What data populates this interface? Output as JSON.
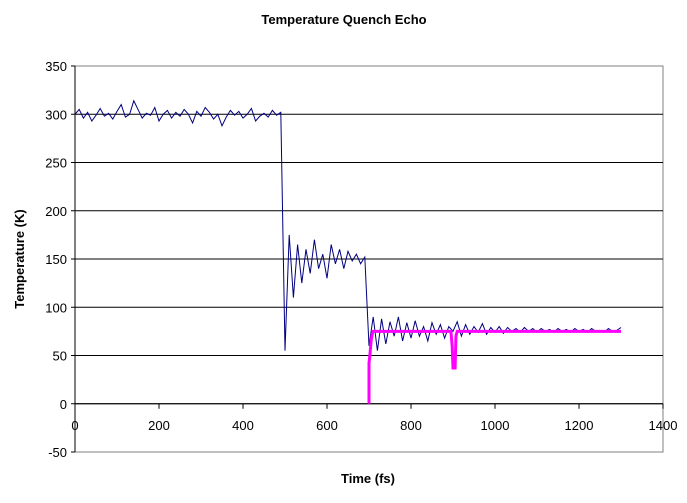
{
  "chart_data": {
    "type": "line",
    "title": "Temperature Quench Echo",
    "xlabel": "Time (fs)",
    "ylabel": "Temperature (K)",
    "xlim": [
      0,
      1400
    ],
    "ylim": [
      -50,
      350
    ],
    "xticks": [
      0,
      200,
      400,
      600,
      800,
      1000,
      1200,
      1400
    ],
    "yticks": [
      -50,
      0,
      50,
      100,
      150,
      200,
      250,
      300,
      350
    ],
    "grid": "horizontal",
    "legend": "none",
    "series": [
      {
        "color": "#000080",
        "x_start": 0,
        "x_step": 10,
        "values": [
          300,
          305,
          296,
          302,
          293,
          299,
          306,
          298,
          301,
          295,
          303,
          310,
          297,
          300,
          314,
          305,
          296,
          301,
          299,
          307,
          293,
          300,
          304,
          296,
          302,
          298,
          305,
          300,
          291,
          303,
          298,
          307,
          302,
          295,
          300,
          288,
          297,
          304,
          299,
          303,
          296,
          300,
          306,
          293,
          298,
          301,
          297,
          304,
          299,
          302,
          55,
          175,
          110,
          165,
          125,
          160,
          135,
          170,
          140,
          155,
          130,
          165,
          145,
          160,
          140,
          158,
          148,
          155,
          145,
          152,
          60,
          90,
          55,
          88,
          62,
          85,
          70,
          90,
          65,
          84,
          68,
          86,
          70,
          80,
          65,
          84,
          72,
          82,
          68,
          80,
          75,
          85,
          70,
          82,
          72,
          80,
          74,
          83,
          72,
          79,
          74,
          80,
          73,
          79,
          75,
          78,
          74,
          79,
          75,
          78,
          74,
          78,
          75,
          77,
          74,
          78,
          75,
          77,
          74,
          78,
          75,
          77,
          74,
          78,
          75,
          76,
          74,
          78,
          75,
          76,
          79
        ]
      },
      {
        "color": "#FF00FF",
        "x": [
          700,
          700,
          702,
          705,
          708,
          710,
          895,
          898,
          900,
          905,
          907,
          910,
          1300
        ],
        "y": [
          0,
          42,
          50,
          65,
          73,
          75,
          75,
          60,
          37,
          37,
          70,
          75,
          75
        ]
      }
    ]
  }
}
